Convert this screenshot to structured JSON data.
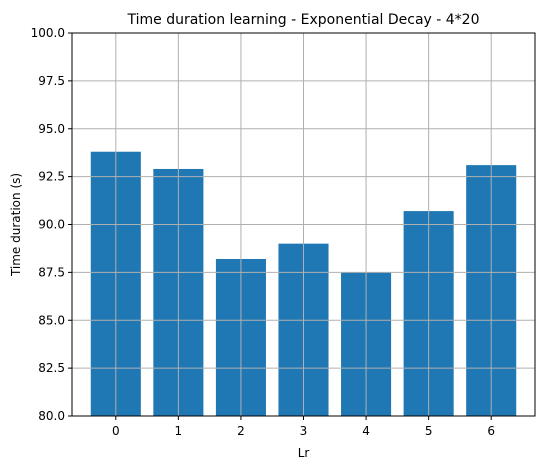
{
  "chart_data": {
    "type": "bar",
    "title": "Time duration learning - Exponential Decay - 4*20",
    "xlabel": "Lr",
    "ylabel": "Time duration (s)",
    "categories": [
      "0",
      "1",
      "2",
      "3",
      "4",
      "5",
      "6"
    ],
    "values": [
      93.8,
      92.9,
      88.2,
      89.0,
      87.5,
      90.7,
      93.1
    ],
    "ylim": [
      80.0,
      100.0
    ],
    "yticks": [
      "80.0",
      "82.5",
      "85.0",
      "87.5",
      "90.0",
      "92.5",
      "95.0",
      "97.5",
      "100.0"
    ],
    "grid": true,
    "bar_color": "#1f77b4",
    "grid_color": "#b0b0b0"
  }
}
